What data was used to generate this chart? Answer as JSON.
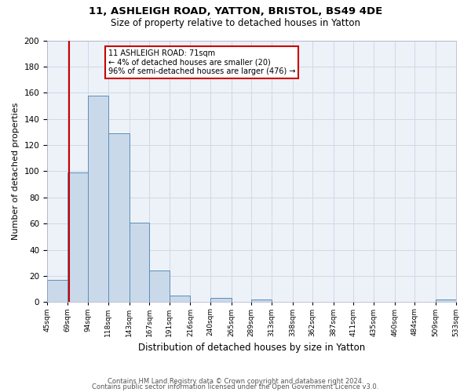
{
  "title1": "11, ASHLEIGH ROAD, YATTON, BRISTOL, BS49 4DE",
  "title2": "Size of property relative to detached houses in Yatton",
  "xlabel": "Distribution of detached houses by size in Yatton",
  "ylabel": "Number of detached properties",
  "bin_edges": [
    45,
    69,
    94,
    118,
    143,
    167,
    191,
    216,
    240,
    265,
    289,
    313,
    338,
    362,
    387,
    411,
    435,
    460,
    484,
    509,
    533
  ],
  "bar_values": [
    17,
    99,
    158,
    129,
    61,
    24,
    5,
    0,
    3,
    0,
    2,
    0,
    0,
    0,
    0,
    0,
    0,
    0,
    0,
    2
  ],
  "bar_color": "#c9d9ea",
  "bar_edge_color": "#5b8db8",
  "grid_color": "#d0d8e8",
  "background_color": "#edf2f8",
  "fig_background": "#ffffff",
  "annotation_text": "11 ASHLEIGH ROAD: 71sqm\n← 4% of detached houses are smaller (20)\n96% of semi-detached houses are larger (476) →",
  "annotation_box_color": "#ffffff",
  "annotation_box_edge": "#cc0000",
  "vline_x": 71,
  "vline_color": "#cc0000",
  "ylim": [
    0,
    200
  ],
  "yticks": [
    0,
    20,
    40,
    60,
    80,
    100,
    120,
    140,
    160,
    180,
    200
  ],
  "tick_labels": [
    "45sqm",
    "69sqm",
    "94sqm",
    "118sqm",
    "143sqm",
    "167sqm",
    "191sqm",
    "216sqm",
    "240sqm",
    "265sqm",
    "289sqm",
    "313sqm",
    "338sqm",
    "362sqm",
    "387sqm",
    "411sqm",
    "435sqm",
    "460sqm",
    "484sqm",
    "509sqm",
    "533sqm"
  ],
  "footer1": "Contains HM Land Registry data © Crown copyright and database right 2024.",
  "footer2": "Contains public sector information licensed under the Open Government Licence v3.0."
}
